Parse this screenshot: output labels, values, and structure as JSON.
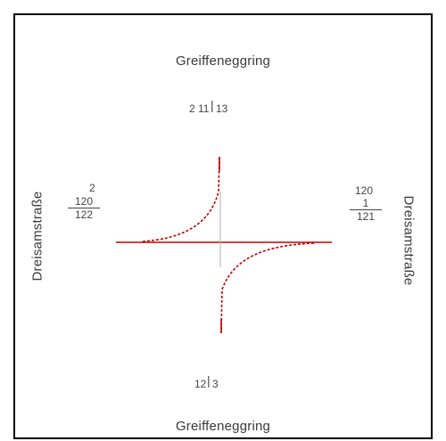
{
  "labels": {
    "top": "Greiffeneggring",
    "bottom": "Greiffeneggring",
    "left": "Dreisamstraße",
    "right": "Dreisamstraße"
  },
  "marks": {
    "top_left_num": "2",
    "top_frac_num": "11",
    "top_frac_den": "13",
    "left_small": "2",
    "left_num": "120",
    "left_den": "122",
    "right_top": "120",
    "right_num": "1",
    "right_den": "121",
    "bottom_num": "12",
    "bottom_den": "3"
  },
  "colors": {
    "frame": "#000000",
    "curve": "#c00000",
    "road_horizontal": "#c00000",
    "road_vertical": "#b0b0b0",
    "text": "#3a3a3a"
  }
}
